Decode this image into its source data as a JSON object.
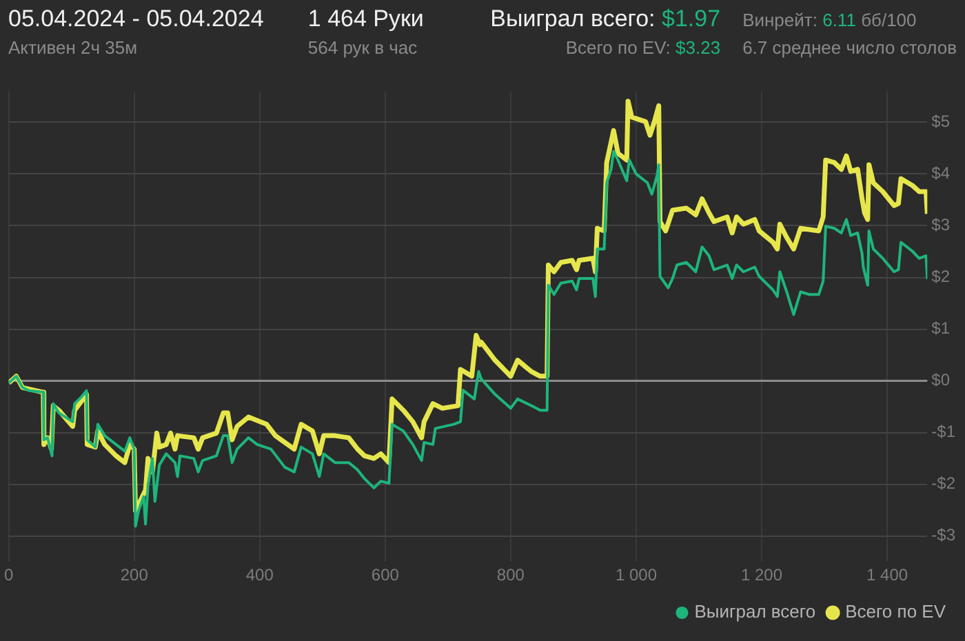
{
  "chart_data": {
    "type": "line",
    "title": "05.04.2024 - 05.04.2024",
    "subtitle": "Активен 2ч 35м",
    "annotations": [
      "1 464 Руки",
      "564 рук в час",
      "Выиграл всего:",
      "$1.97",
      "Всего по EV:",
      "$3.23",
      "Винрейт:",
      "6.11",
      "бб/100",
      "6.7 среднее число столов"
    ],
    "xlim": [
      0,
      1464
    ],
    "xticks": [
      0,
      200,
      400,
      600,
      800,
      {
        "value": 1000,
        "label": "1 000"
      },
      {
        "value": 1200,
        "label": "1 200"
      },
      {
        "value": 1400,
        "label": "1 400"
      }
    ],
    "ylim": [
      -3.5,
      5.6
    ],
    "yticks": [
      {
        "value": -3,
        "label": "-$3"
      },
      {
        "value": -2,
        "label": "-$2"
      },
      {
        "value": -1,
        "label": "-$1"
      },
      {
        "value": 0,
        "label": "$0"
      },
      {
        "value": 1,
        "label": "$1"
      },
      {
        "value": 2,
        "label": "$2"
      },
      {
        "value": 3,
        "label": "$3"
      },
      {
        "value": 4,
        "label": "$4"
      },
      {
        "value": 5,
        "label": "$5"
      }
    ],
    "grid": true,
    "legend": "bottom right",
    "marker": "none",
    "line_style": "solid",
    "ref_lines": [
      {
        "axis": "y",
        "value": 0,
        "color": "#8c8c8c"
      }
    ],
    "series": [
      {
        "name": "Выиграл всего",
        "color": "#1db57c",
        "x": [
          0,
          12,
          22,
          33,
          55,
          56,
          62,
          69,
          71,
          80,
          102,
          105,
          116,
          124,
          125,
          138,
          142,
          153,
          171,
          185,
          193,
          200,
          202,
          207,
          215,
          218,
          222,
          229,
          233,
          240,
          251,
          265,
          269,
          273,
          295,
          302,
          309,
          331,
          342,
          349,
          356,
          364,
          382,
          396,
          418,
          440,
          455,
          466,
          484,
          495,
          502,
          520,
          542,
          556,
          567,
          582,
          593,
          606,
          611,
          629,
          644,
          658,
          662,
          676,
          680,
          709,
          720,
          724,
          742,
          749,
          753,
          775,
          800,
          811,
          833,
          847,
          858,
          860,
          869,
          880,
          898,
          905,
          909,
          931,
          935,
          938,
          949,
          953,
          960,
          964,
          971,
          985,
          989,
          1000,
          1018,
          1025,
          1033,
          1036,
          1038,
          1051,
          1058,
          1065,
          1080,
          1095,
          1105,
          1116,
          1124,
          1145,
          1153,
          1160,
          1171,
          1189,
          1196,
          1218,
          1225,
          1229,
          1240,
          1251,
          1262,
          1276,
          1291,
          1298,
          1302,
          1316,
          1327,
          1335,
          1342,
          1353,
          1360,
          1362,
          1369,
          1371,
          1378,
          1393,
          1411,
          1418,
          1422,
          1440,
          1451,
          1462,
          1464
        ],
        "values": [
          -0.04,
          0.09,
          -0.13,
          -0.19,
          -0.22,
          -1.14,
          -1.1,
          -1.45,
          -0.44,
          -0.62,
          -0.79,
          -0.44,
          -0.31,
          -0.19,
          -1.14,
          -1.28,
          -0.84,
          -1.06,
          -1.23,
          -1.36,
          -1.1,
          -1.32,
          -2.81,
          -2.51,
          -2.24,
          -2.77,
          -2.02,
          -1.5,
          -2.33,
          -1.63,
          -1.41,
          -1.58,
          -1.85,
          -1.45,
          -1.5,
          -1.76,
          -1.54,
          -1.45,
          -1.06,
          -1.06,
          -1.58,
          -1.32,
          -1.1,
          -1.23,
          -1.32,
          -1.67,
          -1.76,
          -1.28,
          -1.41,
          -1.85,
          -1.41,
          -1.58,
          -1.58,
          -1.72,
          -1.89,
          -2.07,
          -1.94,
          -1.98,
          -0.84,
          -0.97,
          -1.23,
          -1.54,
          -1.19,
          -1.23,
          -0.92,
          -0.84,
          -0.79,
          -0.18,
          -0.35,
          0.18,
          0.04,
          -0.26,
          -0.53,
          -0.35,
          -0.48,
          -0.57,
          -0.57,
          1.85,
          1.67,
          1.89,
          1.93,
          1.76,
          1.98,
          1.98,
          1.63,
          2.55,
          2.55,
          3.83,
          4.09,
          4.44,
          4.27,
          3.87,
          4.27,
          4.0,
          3.83,
          3.61,
          3.96,
          4.18,
          2.02,
          1.8,
          1.98,
          2.24,
          2.29,
          2.11,
          2.59,
          2.42,
          2.15,
          2.24,
          1.98,
          2.24,
          2.11,
          2.2,
          2.02,
          1.76,
          1.63,
          2.11,
          1.72,
          1.28,
          1.72,
          1.67,
          1.67,
          1.93,
          2.99,
          2.95,
          2.86,
          3.12,
          2.81,
          2.86,
          2.46,
          2.2,
          1.85,
          2.9,
          2.55,
          2.37,
          2.11,
          2.15,
          2.68,
          2.51,
          2.37,
          2.42,
          1.97
        ]
      },
      {
        "name": "Всего по EV",
        "color": "#e6e64c",
        "x": [
          0,
          12,
          22,
          55,
          56,
          62,
          68,
          71,
          80,
          102,
          105,
          124,
          125,
          138,
          142,
          153,
          171,
          185,
          193,
          200,
          202,
          211,
          218,
          222,
          229,
          236,
          240,
          251,
          258,
          265,
          269,
          295,
          302,
          309,
          331,
          342,
          349,
          356,
          364,
          382,
          411,
          425,
          455,
          466,
          484,
          495,
          502,
          520,
          542,
          556,
          567,
          582,
          593,
          606,
          611,
          629,
          644,
          658,
          662,
          676,
          691,
          716,
          720,
          738,
          745,
          751,
          753,
          775,
          800,
          811,
          833,
          847,
          858,
          860,
          869,
          880,
          898,
          905,
          909,
          931,
          935,
          938,
          949,
          953,
          964,
          971,
          985,
          987,
          993,
          1015,
          1022,
          1029,
          1036,
          1038,
          1047,
          1058,
          1080,
          1095,
          1105,
          1116,
          1124,
          1145,
          1153,
          1160,
          1171,
          1189,
          1196,
          1218,
          1225,
          1229,
          1240,
          1251,
          1262,
          1291,
          1298,
          1302,
          1316,
          1327,
          1335,
          1342,
          1353,
          1360,
          1364,
          1369,
          1371,
          1378,
          1393,
          1411,
          1418,
          1422,
          1440,
          1451,
          1462,
          1464
        ],
        "values": [
          -0.04,
          0.09,
          -0.13,
          -0.22,
          -1.23,
          -1.1,
          -1.32,
          -0.48,
          -0.57,
          -0.88,
          -0.57,
          -0.26,
          -1.23,
          -1.28,
          -0.97,
          -1.23,
          -1.45,
          -1.58,
          -1.23,
          -1.32,
          -2.51,
          -2.29,
          -2.11,
          -1.5,
          -1.76,
          -1.01,
          -1.28,
          -1.23,
          -1.01,
          -1.32,
          -1.06,
          -1.1,
          -1.32,
          -1.1,
          -1.01,
          -0.62,
          -0.62,
          -1.14,
          -0.88,
          -0.7,
          -0.84,
          -1.06,
          -1.32,
          -0.84,
          -0.97,
          -1.41,
          -1.06,
          -1.06,
          -1.1,
          -1.32,
          -1.45,
          -1.5,
          -1.41,
          -1.58,
          -0.35,
          -0.57,
          -0.79,
          -1.1,
          -0.79,
          -0.44,
          -0.53,
          -0.48,
          0.22,
          0.09,
          0.88,
          0.7,
          0.75,
          0.4,
          0.09,
          0.4,
          0.18,
          0.09,
          0.09,
          2.24,
          2.11,
          2.29,
          2.33,
          2.15,
          2.33,
          2.37,
          2.11,
          2.95,
          2.9,
          4.22,
          4.84,
          4.4,
          4.27,
          5.41,
          5.1,
          5.01,
          4.75,
          5.01,
          5.32,
          3.08,
          2.9,
          3.3,
          3.34,
          3.21,
          3.52,
          3.25,
          3.08,
          3.17,
          2.86,
          3.17,
          3.03,
          3.12,
          2.9,
          2.68,
          2.55,
          3.03,
          2.77,
          2.55,
          2.95,
          2.9,
          3.17,
          4.27,
          4.22,
          4.09,
          4.35,
          4.05,
          4.09,
          3.52,
          3.25,
          3.12,
          4.18,
          3.83,
          3.66,
          3.39,
          3.43,
          3.91,
          3.78,
          3.66,
          3.66,
          3.23
        ]
      }
    ]
  }
}
